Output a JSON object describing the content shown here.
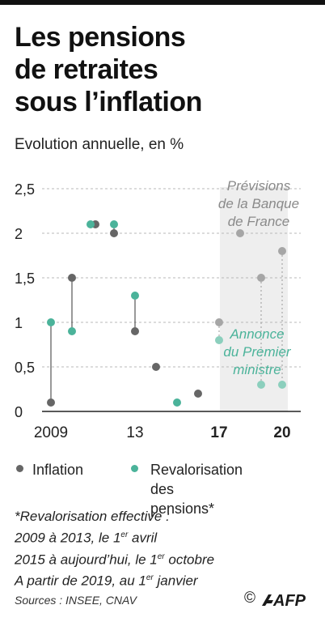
{
  "title_lines": [
    "Les pensions",
    "de retraites",
    "sous l’inflation"
  ],
  "subtitle": "Evolution annuelle, en %",
  "colors": {
    "inflation": "#666666",
    "pensions": "#4bb39a",
    "forecast_band": "#eeeeee",
    "grid": "#b8b8b8"
  },
  "chart_data": {
    "type": "scatter",
    "x": [
      2009,
      2010,
      2011,
      2012,
      2013,
      2014,
      2015,
      2016,
      2017,
      2018,
      2019,
      2020
    ],
    "x_tick_labels": [
      {
        "x": 2009,
        "label": "2009"
      },
      {
        "x": 2013,
        "label": "13"
      },
      {
        "x": 2017,
        "label": "17"
      },
      {
        "x": 2020,
        "label": "20"
      }
    ],
    "ylim": [
      0,
      2.5
    ],
    "y_tick_labels": [
      "0",
      "0,5",
      "1",
      "1,5",
      "2",
      "2,5"
    ],
    "grid": true,
    "forecast_range": [
      2017,
      2020
    ],
    "series": [
      {
        "name": "Inflation",
        "key": "inflation",
        "values": [
          0.1,
          1.5,
          2.1,
          2.0,
          0.9,
          0.5,
          null,
          0.2,
          1.0,
          2.0,
          1.5,
          1.8
        ]
      },
      {
        "name": "Revalorisation des pensions",
        "key": "pensions",
        "values": [
          1.0,
          0.9,
          2.1,
          2.1,
          1.3,
          null,
          0.1,
          null,
          0.8,
          null,
          0.3,
          0.3
        ]
      }
    ],
    "annotations": [
      {
        "lines": [
          "Prévisions",
          "de la Banque",
          "de France"
        ],
        "color": "#8a8a8a"
      },
      {
        "lines": [
          "Annonce",
          "du Premier",
          "ministre"
        ],
        "color": "#4bb39a"
      }
    ]
  },
  "legend": [
    {
      "key": "inflation",
      "lines": [
        "Inflation"
      ]
    },
    {
      "key": "pensions",
      "lines": [
        "Revalorisation",
        "des pensions*"
      ]
    }
  ],
  "notes": {
    "line1": "*Revalorisation effective :",
    "line2_pre": "2009 à 2013, le 1",
    "line2_sup": "er",
    "line2_post": " avril",
    "line3_pre": "2015 à aujourd’hui, le 1",
    "line3_sup": "er",
    "line3_post": " octobre",
    "line4_pre": "A partir de 2019, au 1",
    "line4_sup": "er",
    "line4_post": " janvier"
  },
  "sources": "Sources : INSEE, CNAV",
  "credit": "©",
  "logo_text": "AFP"
}
